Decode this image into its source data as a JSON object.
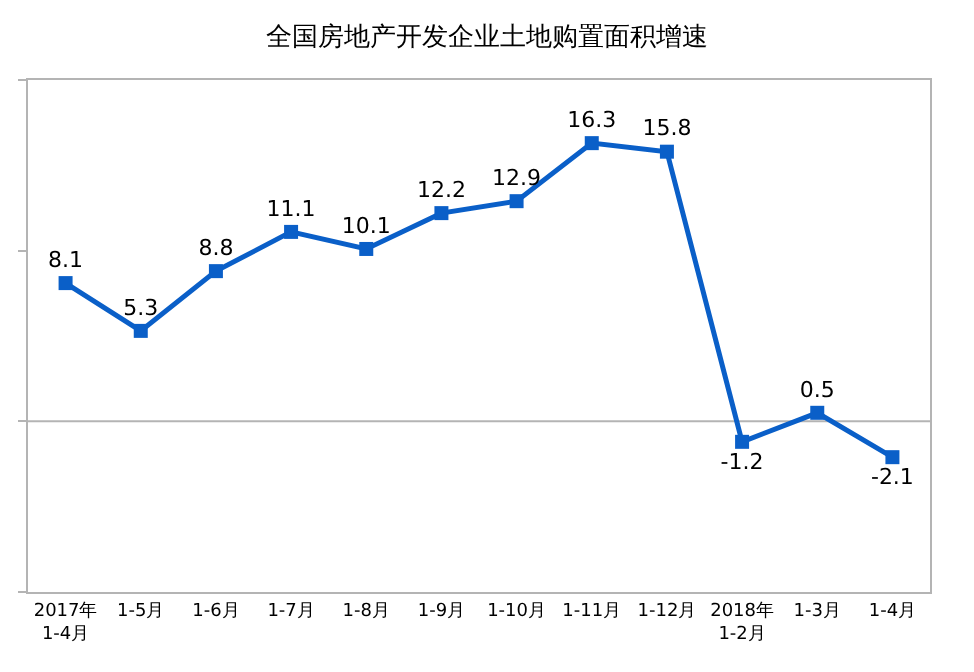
{
  "chart_data": {
    "type": "line",
    "title": "全国房地产开发企业土地购置面积增速",
    "categories": [
      "2017年\n1-4月",
      "1-5月",
      "1-6月",
      "1-7月",
      "1-8月",
      "1-9月",
      "1-10月",
      "1-11月",
      "1-12月",
      "2018年\n1-2月",
      "1-3月",
      "1-4月"
    ],
    "series": [
      {
        "color": "#0a5fc8",
        "values": [
          8.1,
          5.3,
          8.8,
          11.1,
          10.1,
          12.2,
          12.9,
          16.3,
          15.8,
          -1.2,
          0.5,
          -2.1
        ]
      }
    ],
    "ylim": [
      -10,
      20
    ],
    "yticks": [
      {
        "value": -10,
        "label": null
      },
      {
        "value": 0,
        "label": null
      },
      {
        "value": 10,
        "label": null
      },
      {
        "value": 20,
        "label": null
      }
    ],
    "ref_lines": [
      {
        "axis": "y",
        "value": 0,
        "color": "#b4b4b4"
      }
    ],
    "tick_labels": "x",
    "data_labels": true,
    "marker": "square",
    "line_style": "solid",
    "grid": false,
    "legend": false
  }
}
